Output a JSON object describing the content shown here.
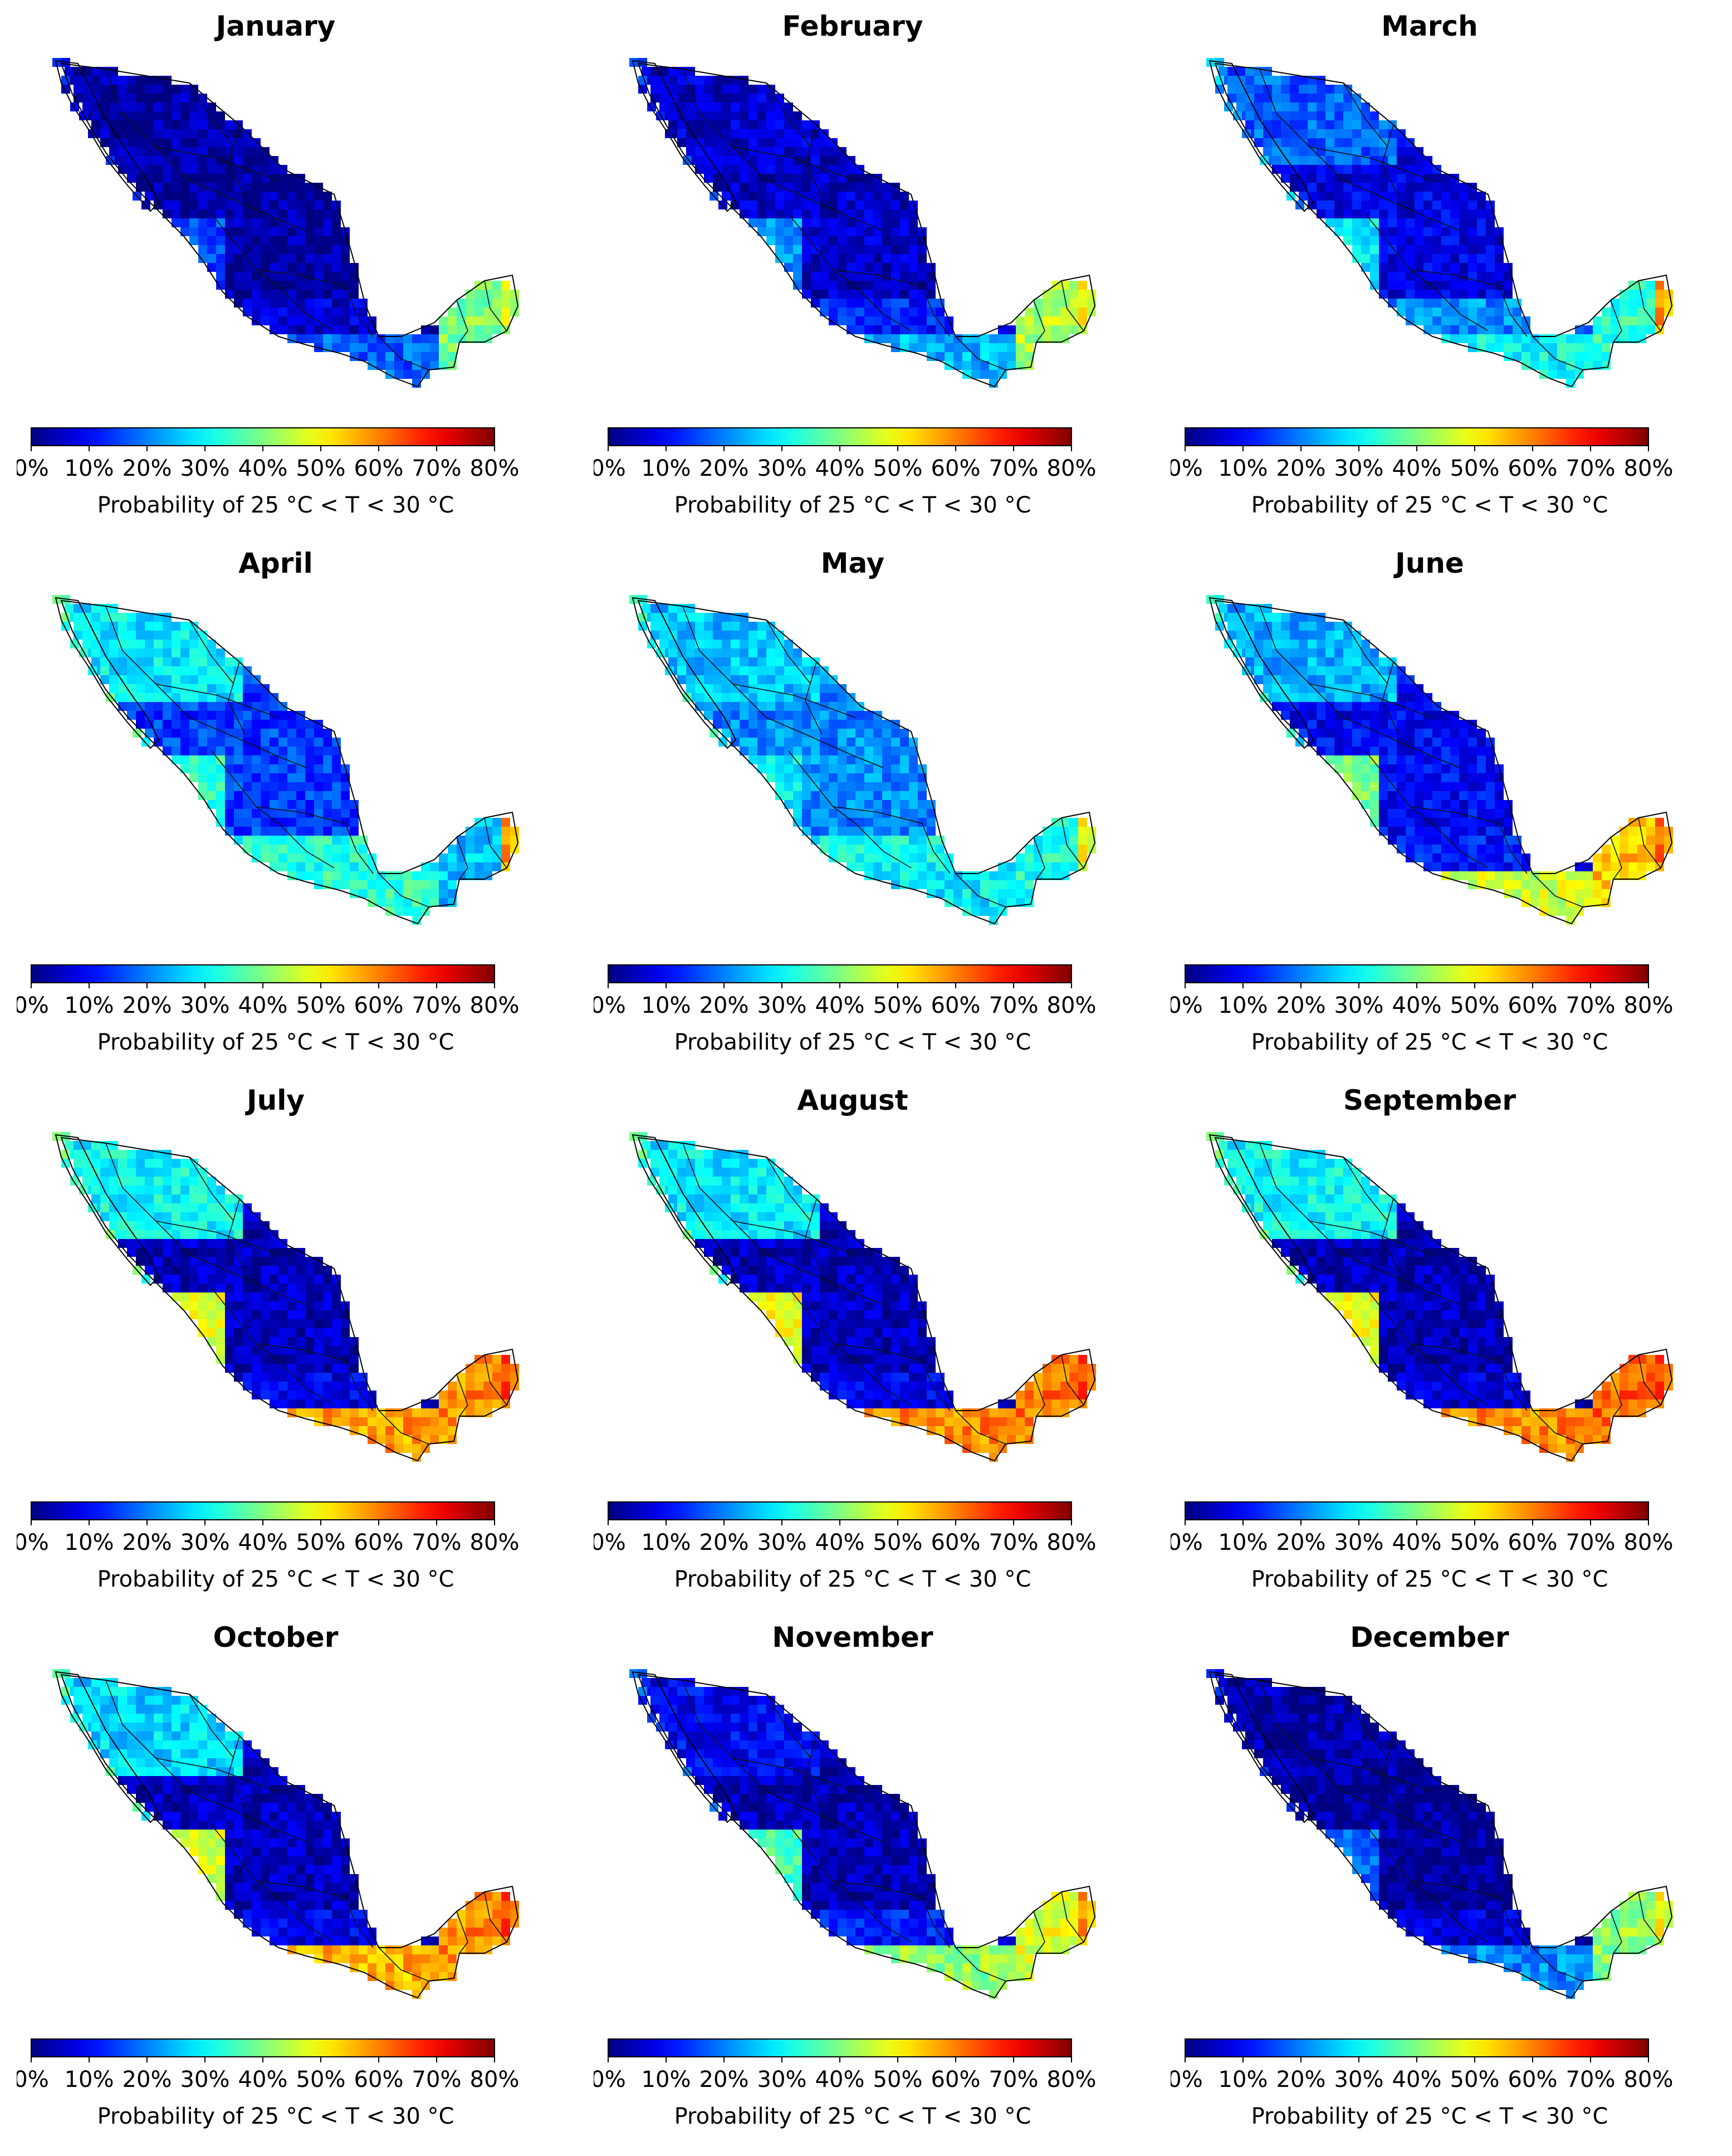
{
  "colorbar": {
    "ticks": [
      "0%",
      "10%",
      "20%",
      "30%",
      "40%",
      "50%",
      "60%",
      "70%",
      "80%"
    ],
    "label": "Probability of 25 °C < T < 30 °C",
    "colormap": "jet",
    "range": [
      0,
      80
    ]
  },
  "panels": [
    {
      "month": "January",
      "north": 0.04,
      "interior": 0.03,
      "coast": 0.22,
      "south": 0.08,
      "yucatan": 0.5,
      "hot_coast": 0.58
    },
    {
      "month": "February",
      "north": 0.08,
      "interior": 0.07,
      "coast": 0.3,
      "south": 0.15,
      "yucatan": 0.55,
      "hot_coast": 0.62
    },
    {
      "month": "March",
      "north": 0.22,
      "interior": 0.1,
      "coast": 0.38,
      "south": 0.26,
      "yucatan": 0.42,
      "hot_coast": 0.72
    },
    {
      "month": "April",
      "north": 0.36,
      "interior": 0.18,
      "coast": 0.42,
      "south": 0.4,
      "yucatan": 0.32,
      "hot_coast": 0.72
    },
    {
      "month": "May",
      "north": 0.32,
      "interior": 0.26,
      "coast": 0.36,
      "south": 0.38,
      "yucatan": 0.4,
      "hot_coast": 0.62
    },
    {
      "month": "June",
      "north": 0.3,
      "interior": 0.12,
      "coast": 0.58,
      "south": 0.14,
      "yucatan": 0.68,
      "hot_coast": 0.76
    },
    {
      "month": "July",
      "north": 0.38,
      "interior": 0.06,
      "coast": 0.72,
      "south": 0.1,
      "yucatan": 0.74,
      "hot_coast": 0.8
    },
    {
      "month": "August",
      "north": 0.36,
      "interior": 0.06,
      "coast": 0.74,
      "south": 0.1,
      "yucatan": 0.76,
      "hot_coast": 0.8
    },
    {
      "month": "September",
      "north": 0.38,
      "interior": 0.05,
      "coast": 0.74,
      "south": 0.08,
      "yucatan": 0.78,
      "hot_coast": 0.8
    },
    {
      "month": "October",
      "north": 0.34,
      "interior": 0.06,
      "coast": 0.7,
      "south": 0.1,
      "yucatan": 0.74,
      "hot_coast": 0.8
    },
    {
      "month": "November",
      "north": 0.12,
      "interior": 0.05,
      "coast": 0.52,
      "south": 0.14,
      "yucatan": 0.6,
      "hot_coast": 0.72
    },
    {
      "month": "December",
      "north": 0.04,
      "interior": 0.02,
      "coast": 0.26,
      "south": 0.08,
      "yucatan": 0.52,
      "hot_coast": 0.62
    }
  ]
}
